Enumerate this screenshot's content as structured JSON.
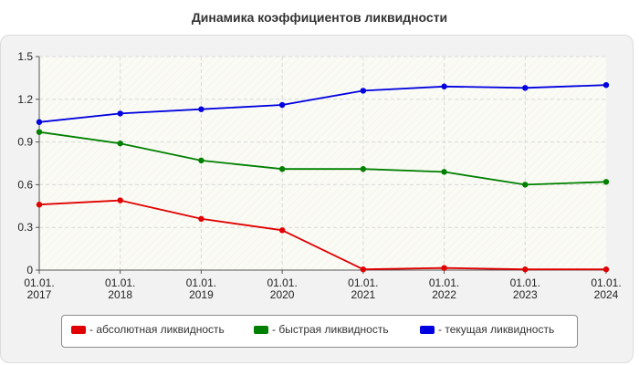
{
  "chart_data": {
    "type": "line",
    "title": "Динамика коэффициентов ликвидности",
    "categories": [
      "01.01.\n2017",
      "01.01.\n2018",
      "01.01.\n2019",
      "01.01.\n2020",
      "01.01.\n2021",
      "01.01.\n2022",
      "01.01.\n2023",
      "01.01.\n2024"
    ],
    "y_ticks": [
      "0",
      "0.3",
      "0.6",
      "0.9",
      "1.2",
      "1.5"
    ],
    "ylim": [
      0,
      1.5
    ],
    "grid": true,
    "legend_position": "bottom",
    "series": [
      {
        "name": "- абсолютная ликвидность",
        "color": "#e00000",
        "values": [
          0.46,
          0.49,
          0.36,
          0.28,
          0.005,
          0.015,
          0.005,
          0.005
        ]
      },
      {
        "name": "- быстрая ликвидность",
        "color": "#008000",
        "values": [
          0.97,
          0.89,
          0.77,
          0.71,
          0.71,
          0.69,
          0.6,
          0.62
        ]
      },
      {
        "name": "- текущая ликвидность",
        "color": "#0000e0",
        "values": [
          1.04,
          1.1,
          1.13,
          1.16,
          1.26,
          1.29,
          1.28,
          1.3
        ]
      }
    ]
  }
}
